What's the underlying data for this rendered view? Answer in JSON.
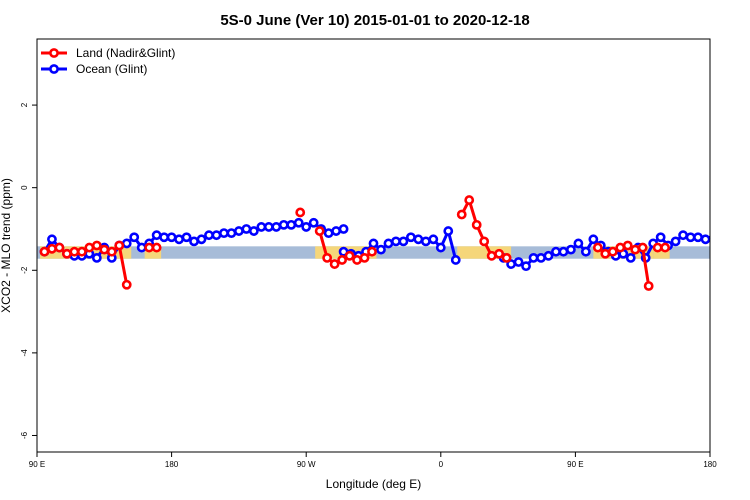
{
  "chart_data": {
    "type": "line",
    "title": "5S-0 June (Ver 10)   2015-01-01 to 2020-12-18",
    "xlabel": "Longitude (deg E)",
    "ylabel": "XCO2 - MLO trend (ppm)",
    "x_ticks": [
      {
        "value": -90,
        "label": "90 E"
      },
      {
        "value": 0,
        "label": "180"
      },
      {
        "value": 90,
        "label": "90 W"
      },
      {
        "value": 180,
        "label": "0"
      },
      {
        "value": 270,
        "label": "90 E"
      },
      {
        "value": 360,
        "label": "180"
      }
    ],
    "y_ticks": [
      -6,
      -4,
      -2,
      0,
      2
    ],
    "xlim": [
      -90,
      360
    ],
    "ylim": [
      -6.4,
      3.6
    ],
    "band_y": [
      -1.72,
      -1.42
    ],
    "colors": {
      "land": "#ff0000",
      "ocean": "#0000ff",
      "land_band": "#f5d67a",
      "ocean_band": "#a7bcd8"
    },
    "legend": {
      "position": "top-left"
    },
    "series": [
      {
        "name": "Land (Nadir&Glint)",
        "color": "#ff0000",
        "segments": [
          [
            [
              -85,
              -1.55
            ],
            [
              -80,
              -1.48
            ],
            [
              -75,
              -1.45
            ],
            [
              -70,
              -1.6
            ],
            [
              -65,
              -1.55
            ],
            [
              -60,
              -1.55
            ],
            [
              -55,
              -1.45
            ],
            [
              -50,
              -1.4
            ],
            [
              -45,
              -1.5
            ],
            [
              -40,
              -1.55
            ],
            [
              -35,
              -1.4
            ],
            [
              -30,
              -2.35
            ]
          ],
          [
            [
              -15,
              -1.45
            ],
            [
              -10,
              -1.45
            ]
          ],
          [
            [
              86,
              -0.6
            ]
          ],
          [
            [
              99,
              -1.05
            ],
            [
              104,
              -1.7
            ],
            [
              109,
              -1.85
            ],
            [
              114,
              -1.75
            ],
            [
              119,
              -1.65
            ],
            [
              124,
              -1.75
            ],
            [
              129,
              -1.7
            ],
            [
              134,
              -1.55
            ]
          ],
          [
            [
              194,
              -0.65
            ],
            [
              199,
              -0.3
            ],
            [
              204,
              -0.9
            ],
            [
              209,
              -1.3
            ],
            [
              214,
              -1.65
            ],
            [
              219,
              -1.6
            ],
            [
              224,
              -1.7
            ]
          ],
          [
            [
              285,
              -1.45
            ],
            [
              290,
              -1.6
            ],
            [
              295,
              -1.55
            ],
            [
              300,
              -1.45
            ],
            [
              305,
              -1.4
            ],
            [
              310,
              -1.5
            ],
            [
              315,
              -1.45
            ],
            [
              319,
              -2.38
            ]
          ],
          [
            [
              325,
              -1.45
            ],
            [
              330,
              -1.45
            ]
          ]
        ]
      },
      {
        "name": "Ocean (Glint)",
        "color": "#0000ff",
        "segments": [
          [
            [
              -85,
              -1.55
            ],
            [
              -80,
              -1.25
            ],
            [
              -75,
              -1.45
            ],
            [
              -70,
              -1.6
            ],
            [
              -65,
              -1.65
            ],
            [
              -60,
              -1.65
            ],
            [
              -55,
              -1.6
            ],
            [
              -50,
              -1.7
            ],
            [
              -45,
              -1.45
            ],
            [
              -40,
              -1.7
            ],
            [
              -35,
              -1.4
            ],
            [
              -30,
              -1.35
            ],
            [
              -25,
              -1.2
            ],
            [
              -20,
              -1.45
            ],
            [
              -15,
              -1.35
            ],
            [
              -10,
              -1.15
            ],
            [
              -5,
              -1.2
            ],
            [
              0,
              -1.2
            ],
            [
              5,
              -1.25
            ],
            [
              10,
              -1.2
            ],
            [
              15,
              -1.3
            ],
            [
              20,
              -1.25
            ],
            [
              25,
              -1.15
            ],
            [
              30,
              -1.15
            ],
            [
              35,
              -1.1
            ],
            [
              40,
              -1.1
            ],
            [
              45,
              -1.05
            ],
            [
              50,
              -1.0
            ],
            [
              55,
              -1.05
            ],
            [
              60,
              -0.95
            ],
            [
              65,
              -0.95
            ],
            [
              70,
              -0.95
            ],
            [
              75,
              -0.9
            ],
            [
              80,
              -0.9
            ],
            [
              85,
              -0.85
            ],
            [
              90,
              -0.95
            ],
            [
              95,
              -0.85
            ],
            [
              100,
              -1.0
            ],
            [
              105,
              -1.1
            ],
            [
              110,
              -1.05
            ],
            [
              115,
              -1.0
            ]
          ],
          [
            [
              115,
              -1.55
            ],
            [
              120,
              -1.6
            ],
            [
              125,
              -1.65
            ],
            [
              130,
              -1.55
            ],
            [
              135,
              -1.35
            ],
            [
              140,
              -1.5
            ],
            [
              145,
              -1.35
            ],
            [
              150,
              -1.3
            ],
            [
              155,
              -1.3
            ],
            [
              160,
              -1.2
            ],
            [
              165,
              -1.25
            ],
            [
              170,
              -1.3
            ],
            [
              175,
              -1.25
            ],
            [
              180,
              -1.45
            ],
            [
              185,
              -1.05
            ],
            [
              190,
              -1.75
            ]
          ],
          [
            [
              222,
              -1.7
            ],
            [
              227,
              -1.85
            ],
            [
              232,
              -1.8
            ],
            [
              237,
              -1.9
            ],
            [
              242,
              -1.7
            ],
            [
              247,
              -1.7
            ],
            [
              252,
              -1.65
            ],
            [
              257,
              -1.55
            ],
            [
              262,
              -1.55
            ],
            [
              267,
              -1.5
            ],
            [
              272,
              -1.35
            ],
            [
              277,
              -1.55
            ],
            [
              282,
              -1.25
            ],
            [
              287,
              -1.4
            ],
            [
              292,
              -1.55
            ],
            [
              297,
              -1.65
            ],
            [
              302,
              -1.6
            ],
            [
              307,
              -1.7
            ],
            [
              312,
              -1.45
            ],
            [
              317,
              -1.7
            ],
            [
              322,
              -1.35
            ],
            [
              327,
              -1.2
            ],
            [
              332,
              -1.4
            ],
            [
              337,
              -1.3
            ],
            [
              342,
              -1.15
            ],
            [
              347,
              -1.2
            ],
            [
              352,
              -1.2
            ],
            [
              357,
              -1.25
            ],
            [
              362,
              -1.2
            ]
          ]
        ]
      }
    ]
  }
}
